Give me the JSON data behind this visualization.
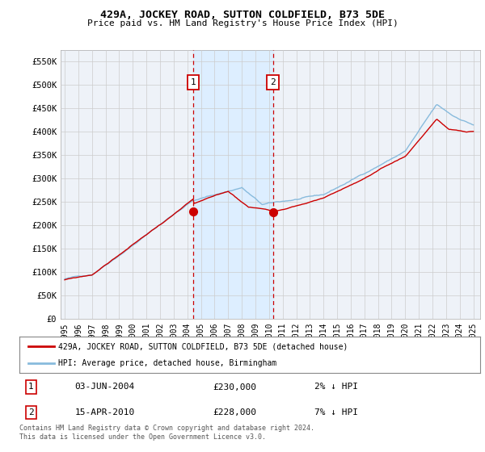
{
  "title": "429A, JOCKEY ROAD, SUTTON COLDFIELD, B73 5DE",
  "subtitle": "Price paid vs. HM Land Registry's House Price Index (HPI)",
  "ylabel_ticks": [
    "£0",
    "£50K",
    "£100K",
    "£150K",
    "£200K",
    "£250K",
    "£300K",
    "£350K",
    "£400K",
    "£450K",
    "£500K",
    "£550K"
  ],
  "ytick_vals": [
    0,
    50000,
    100000,
    150000,
    200000,
    250000,
    300000,
    350000,
    400000,
    450000,
    500000,
    550000
  ],
  "ylim": [
    0,
    575000
  ],
  "xlim_start": 1994.7,
  "xlim_end": 2025.5,
  "hpi_color": "#88bbdd",
  "price_color": "#cc0000",
  "shade_color": "#ddeeff",
  "marker1_date": 2004.42,
  "marker2_date": 2010.29,
  "marker1_price": 230000,
  "marker2_price": 228000,
  "legend_label1": "429A, JOCKEY ROAD, SUTTON COLDFIELD, B73 5DE (detached house)",
  "legend_label2": "HPI: Average price, detached house, Birmingham",
  "table_row1": [
    "1",
    "03-JUN-2004",
    "£230,000",
    "2% ↓ HPI"
  ],
  "table_row2": [
    "2",
    "15-APR-2010",
    "£228,000",
    "7% ↓ HPI"
  ],
  "footnote": "Contains HM Land Registry data © Crown copyright and database right 2024.\nThis data is licensed under the Open Government Licence v3.0.",
  "background_color": "#ffffff",
  "grid_color": "#cccccc",
  "plot_bg_color": "#eef2f8"
}
